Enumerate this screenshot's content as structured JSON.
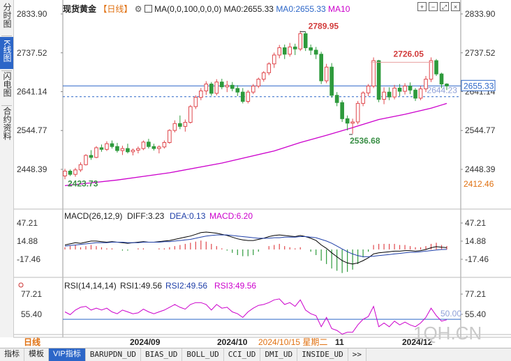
{
  "side_tabs": [
    "分时图",
    "K线图",
    "闪电图",
    "合约资料"
  ],
  "side_tab_active": 1,
  "header": {
    "title": "现货黄金",
    "period": "【日线】",
    "ma_label": "MA(0,0,100,0,0,0)",
    "ma0_a": "MA0:2655.33",
    "ma0_b": "MA0:2655.33",
    "ma10": "MA10"
  },
  "macd_header": {
    "name": "MACD(26,12,9)",
    "diff": "DIFF:3.23",
    "dea": "DEA:0.13",
    "macd": "MACD:6.20"
  },
  "rsi_header": {
    "name": "RSI(14,14,14)",
    "rsi1": "RSI1:49.56",
    "rsi2": "RSI2:49.56",
    "rsi3": "RSI3:49.56"
  },
  "price_axis": {
    "labels_left": [
      "2833.90",
      "2737.52",
      "2641.14",
      "2544.77",
      "2448.39"
    ],
    "labels_right": [
      "2833.90",
      "2737.52",
      "2641.14",
      "2544.77",
      "2448.39"
    ],
    "values": [
      2833.9,
      2737.52,
      2641.14,
      2544.77,
      2448.39
    ],
    "last_price_tag": "2655.33",
    "low_tag": "2412.46"
  },
  "macd_axis": {
    "labels": [
      "47.21",
      "14.88",
      "-17.46"
    ],
    "values": [
      47.21,
      14.88,
      -17.46
    ]
  },
  "rsi_axis": {
    "labels": [
      "77.21",
      "55.40"
    ],
    "values": [
      77.21,
      55.4
    ],
    "midline_label": "50.00"
  },
  "annotations": {
    "high": "2789.95",
    "low": "2536.68",
    "start_low": "2423.73",
    "second_high": "2726.05",
    "dashed_level": "2644.23"
  },
  "x_axis": {
    "period_button": "日线",
    "labels": [
      "2024/09",
      "2024/10",
      "2024/11",
      "2024/12"
    ],
    "cursor_date": "2024/10/15 星期二",
    "cursor_suffix": "11"
  },
  "bottom_tabs": [
    "指标",
    "模板",
    "VIP指标",
    "BARUPDN_UD",
    "BIAS_UD",
    "BOLL_UD",
    "CCI_UD",
    "DMI_UD",
    "INSIDE_UD",
    ">>"
  ],
  "bottom_tab_active": 2,
  "watermark": "1QH.CN",
  "colors": {
    "up": "#e0474c",
    "down": "#2e9a3c",
    "ma": "#cc00cc",
    "diff": "#000000",
    "dea": "#1f3fa8",
    "rsi": "#cc00cc",
    "accent": "#2c66c8"
  },
  "chart_data": [
    {
      "type": "candlestick",
      "title": "现货黄金 日线",
      "ylim": [
        2400,
        2845
      ],
      "ma_series_name": "MA0",
      "ohlc": [
        [
          2432,
          2450,
          2423.73,
          2444
        ],
        [
          2444,
          2448,
          2432,
          2436
        ],
        [
          2436,
          2452,
          2430,
          2447
        ],
        [
          2447,
          2466,
          2442,
          2460
        ],
        [
          2460,
          2486,
          2458,
          2483
        ],
        [
          2483,
          2496,
          2472,
          2478
        ],
        [
          2478,
          2506,
          2476,
          2502
        ],
        [
          2502,
          2510,
          2492,
          2498
        ],
        [
          2498,
          2518,
          2494,
          2512
        ],
        [
          2512,
          2520,
          2500,
          2505
        ],
        [
          2505,
          2514,
          2490,
          2495
        ],
        [
          2495,
          2507,
          2484,
          2500
        ],
        [
          2500,
          2512,
          2488,
          2492
        ],
        [
          2492,
          2500,
          2483,
          2496
        ],
        [
          2496,
          2505,
          2488,
          2500
        ],
        [
          2500,
          2520,
          2496,
          2516
        ],
        [
          2516,
          2524,
          2500,
          2505
        ],
        [
          2505,
          2512,
          2495,
          2500
        ],
        [
          2500,
          2508,
          2488,
          2504
        ],
        [
          2504,
          2520,
          2500,
          2515
        ],
        [
          2515,
          2548,
          2512,
          2545
        ],
        [
          2545,
          2570,
          2540,
          2562
        ],
        [
          2562,
          2582,
          2548,
          2555
        ],
        [
          2555,
          2572,
          2542,
          2565
        ],
        [
          2565,
          2608,
          2562,
          2604
        ],
        [
          2604,
          2632,
          2598,
          2627
        ],
        [
          2627,
          2650,
          2620,
          2643
        ],
        [
          2643,
          2667,
          2633,
          2660
        ],
        [
          2660,
          2665,
          2631,
          2637
        ],
        [
          2637,
          2672,
          2632,
          2665
        ],
        [
          2665,
          2673,
          2647,
          2653
        ],
        [
          2653,
          2668,
          2640,
          2657
        ],
        [
          2657,
          2665,
          2642,
          2649
        ],
        [
          2649,
          2657,
          2630,
          2640
        ],
        [
          2640,
          2650,
          2612,
          2617
        ],
        [
          2617,
          2645,
          2612,
          2640
        ],
        [
          2640,
          2660,
          2635,
          2655
        ],
        [
          2655,
          2676,
          2650,
          2672
        ],
        [
          2672,
          2692,
          2666,
          2688
        ],
        [
          2688,
          2714,
          2682,
          2710
        ],
        [
          2710,
          2738,
          2700,
          2732
        ],
        [
          2732,
          2757,
          2724,
          2750
        ],
        [
          2750,
          2758,
          2722,
          2734
        ],
        [
          2734,
          2762,
          2728,
          2752
        ],
        [
          2752,
          2760,
          2732,
          2747
        ],
        [
          2747,
          2792,
          2742,
          2785
        ],
        [
          2785,
          2789.95,
          2742,
          2750
        ],
        [
          2750,
          2758,
          2732,
          2744
        ],
        [
          2744,
          2752,
          2722,
          2734
        ],
        [
          2734,
          2740,
          2660,
          2668
        ],
        [
          2668,
          2710,
          2662,
          2702
        ],
        [
          2702,
          2712,
          2626,
          2632
        ],
        [
          2632,
          2640,
          2605,
          2614
        ],
        [
          2614,
          2620,
          2566,
          2574
        ],
        [
          2574,
          2582,
          2545,
          2563
        ],
        [
          2563,
          2574,
          2536.68,
          2566
        ],
        [
          2566,
          2618,
          2560,
          2612
        ],
        [
          2612,
          2642,
          2605,
          2638
        ],
        [
          2638,
          2660,
          2630,
          2655
        ],
        [
          2655,
          2726,
          2650,
          2718
        ],
        [
          2718,
          2720,
          2615,
          2622
        ],
        [
          2622,
          2652,
          2610,
          2640
        ],
        [
          2640,
          2652,
          2620,
          2628
        ],
        [
          2628,
          2658,
          2622,
          2650
        ],
        [
          2650,
          2660,
          2630,
          2642
        ],
        [
          2642,
          2662,
          2634,
          2655
        ],
        [
          2655,
          2664,
          2635,
          2645
        ],
        [
          2645,
          2650,
          2618,
          2625
        ],
        [
          2625,
          2655,
          2620,
          2648
        ],
        [
          2648,
          2680,
          2640,
          2672
        ],
        [
          2672,
          2726.05,
          2665,
          2718
        ],
        [
          2718,
          2722,
          2680,
          2685
        ],
        [
          2685,
          2688,
          2650,
          2660
        ],
        [
          2660,
          2662,
          2645,
          2655.33
        ]
      ],
      "ma": [
        [
          0,
          2408
        ],
        [
          10,
          2422
        ],
        [
          20,
          2440
        ],
        [
          30,
          2464
        ],
        [
          40,
          2494
        ],
        [
          45,
          2515
        ],
        [
          50,
          2533
        ],
        [
          55,
          2552
        ],
        [
          60,
          2572
        ],
        [
          65,
          2585
        ],
        [
          70,
          2600
        ],
        [
          73,
          2612
        ]
      ]
    },
    {
      "type": "macd",
      "ylim": [
        -35,
        60
      ],
      "diff": [
        8,
        10,
        12,
        11,
        13,
        15,
        15,
        14,
        13,
        14,
        13,
        12,
        11,
        12,
        13,
        14,
        13,
        13,
        14,
        15,
        16,
        18,
        20,
        22,
        24,
        27,
        30,
        31,
        30,
        29,
        27,
        25,
        22,
        19,
        17,
        16,
        16,
        18,
        20,
        23,
        25,
        26,
        25,
        24,
        23,
        25,
        23,
        20,
        16,
        8,
        2,
        -6,
        -13,
        -20,
        -24,
        -26,
        -24,
        -20,
        -15,
        -8,
        -6,
        -5,
        -4,
        -3,
        -3,
        -2,
        -2,
        -3,
        -2,
        0,
        3,
        5,
        4,
        3.23
      ],
      "dea": [
        6,
        7,
        8,
        9,
        10,
        11,
        12,
        12,
        12,
        13,
        13,
        13,
        12,
        12,
        12,
        13,
        13,
        13,
        13,
        14,
        14,
        15,
        16,
        17,
        18,
        20,
        22,
        24,
        25,
        26,
        26,
        26,
        25,
        24,
        23,
        22,
        21,
        20,
        20,
        20,
        21,
        21,
        22,
        22,
        22,
        23,
        23,
        22,
        21,
        18,
        15,
        11,
        6,
        1,
        -4,
        -8,
        -11,
        -13,
        -13,
        -12,
        -11,
        -10,
        -9,
        -8,
        -7,
        -6,
        -5,
        -5,
        -4,
        -3,
        -2,
        -1,
        0,
        0.13
      ],
      "macd_hist": [
        4,
        6,
        8,
        4,
        6,
        8,
        6,
        4,
        2,
        2,
        0,
        -2,
        -2,
        0,
        2,
        2,
        0,
        0,
        2,
        2,
        4,
        6,
        8,
        10,
        12,
        14,
        16,
        14,
        10,
        6,
        2,
        -2,
        -6,
        -10,
        -12,
        -12,
        -10,
        -4,
        0,
        6,
        8,
        10,
        6,
        4,
        2,
        4,
        0,
        -4,
        -10,
        -20,
        -26,
        -34,
        -38,
        -42,
        -40,
        -36,
        -26,
        -14,
        -4,
        8,
        10,
        10,
        10,
        10,
        8,
        8,
        6,
        4,
        4,
        6,
        10,
        12,
        8,
        6.2
      ]
    },
    {
      "type": "line",
      "name": "RSI",
      "ylim": [
        30,
        88
      ],
      "rsi": [
        58,
        55,
        60,
        63,
        64,
        60,
        62,
        60,
        62,
        58,
        56,
        60,
        58,
        56,
        57,
        61,
        58,
        56,
        58,
        60,
        63,
        66,
        63,
        61,
        66,
        68,
        68,
        66,
        60,
        66,
        62,
        63,
        58,
        56,
        52,
        58,
        62,
        65,
        66,
        68,
        71,
        72,
        66,
        68,
        64,
        71,
        60,
        56,
        54,
        42,
        52,
        40,
        38,
        34,
        36,
        36,
        44,
        50,
        53,
        64,
        42,
        46,
        42,
        48,
        44,
        47,
        44,
        42,
        46,
        52,
        62,
        54,
        48,
        49.56
      ],
      "midline": 50.0
    }
  ]
}
